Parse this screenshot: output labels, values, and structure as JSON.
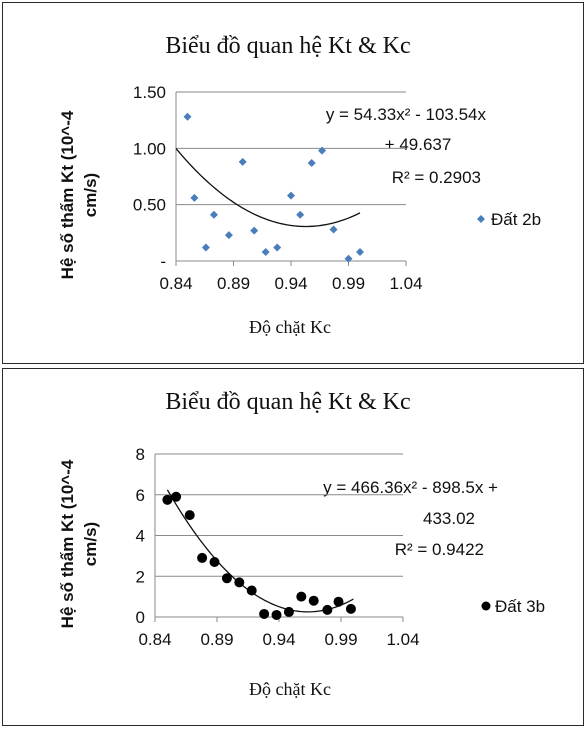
{
  "chart_data": [
    {
      "type": "scatter",
      "title": "Biểu đồ quan hệ Kt & Kc",
      "xlabel": "Độ  chặt Kc",
      "ylabel_line1": "Hệ số thấm Kt (10^-4",
      "ylabel_line2": "cm/s)",
      "xlim": [
        0.84,
        1.04
      ],
      "ylim": [
        0,
        1.5
      ],
      "x_ticks": [
        0.84,
        0.89,
        0.94,
        0.99,
        1.04
      ],
      "x_tick_labels": [
        "0.84",
        "0.89",
        "0.94",
        "0.99",
        "1.04"
      ],
      "y_ticks": [
        0,
        0.5,
        1.0,
        1.5
      ],
      "y_tick_labels": [
        "-",
        "0.50",
        "1.00",
        "1.50"
      ],
      "grid": true,
      "legend_position": "right",
      "marker": "diamond",
      "marker_color": "#4a7ebb",
      "trend_color": "#111111",
      "series": [
        {
          "name": "Đất 2b",
          "points": [
            [
              0.85,
              1.28
            ],
            [
              0.856,
              0.56
            ],
            [
              0.866,
              0.12
            ],
            [
              0.873,
              0.41
            ],
            [
              0.886,
              0.23
            ],
            [
              0.898,
              0.88
            ],
            [
              0.908,
              0.27
            ],
            [
              0.918,
              0.08
            ],
            [
              0.928,
              0.12
            ],
            [
              0.94,
              0.58
            ],
            [
              0.948,
              0.41
            ],
            [
              0.958,
              0.87
            ],
            [
              0.967,
              0.98
            ],
            [
              0.977,
              0.28
            ],
            [
              0.99,
              0.02
            ],
            [
              1.0,
              0.08
            ]
          ]
        }
      ],
      "trendline": {
        "a": 54.33,
        "b": -103.54,
        "c": 49.637,
        "x_from": 0.84,
        "x_to": 1.0
      },
      "equation_line1": "y = 54.33x² - 103.54x",
      "equation_line2": "+ 49.637",
      "r2": "R² = 0.2903"
    },
    {
      "type": "scatter",
      "title": "Biểu đồ quan hệ Kt & Kc",
      "xlabel": "Độ  chặt Kc",
      "ylabel_line1": "Hệ số thấm Kt (10^-4",
      "ylabel_line2": "cm/s)",
      "xlim": [
        0.84,
        1.04
      ],
      "ylim": [
        0,
        8
      ],
      "x_ticks": [
        0.84,
        0.89,
        0.94,
        0.99,
        1.04
      ],
      "x_tick_labels": [
        "0.84",
        "0.89",
        "0.94",
        "0.99",
        "1.04"
      ],
      "y_ticks": [
        0,
        2,
        4,
        6,
        8
      ],
      "y_tick_labels": [
        "0",
        "2",
        "4",
        "6",
        "8"
      ],
      "grid": true,
      "legend_position": "right",
      "marker": "circle",
      "marker_color": "#000000",
      "trend_color": "#111111",
      "series": [
        {
          "name": "Đất 3b",
          "points": [
            [
              0.85,
              5.75
            ],
            [
              0.857,
              5.9
            ],
            [
              0.868,
              5.0
            ],
            [
              0.878,
              2.9
            ],
            [
              0.888,
              2.7
            ],
            [
              0.898,
              1.9
            ],
            [
              0.908,
              1.7
            ],
            [
              0.918,
              1.3
            ],
            [
              0.928,
              0.15
            ],
            [
              0.938,
              0.1
            ],
            [
              0.948,
              0.25
            ],
            [
              0.958,
              1.0
            ],
            [
              0.968,
              0.8
            ],
            [
              0.979,
              0.35
            ],
            [
              0.988,
              0.75
            ],
            [
              0.998,
              0.4
            ]
          ]
        }
      ],
      "trendline": {
        "a": 466.36,
        "b": -898.5,
        "c": 433.02,
        "x_from": 0.85,
        "x_to": 1.0
      },
      "equation_line1": "y = 466.36x² - 898.5x +",
      "equation_line2": "433.02",
      "r2": "R² = 0.9422"
    }
  ]
}
